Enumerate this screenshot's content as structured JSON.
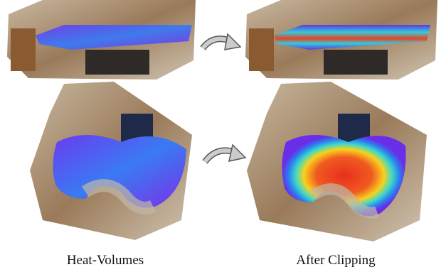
{
  "captions": {
    "left": "Heat-Volumes",
    "right": "After Clipping"
  }
}
